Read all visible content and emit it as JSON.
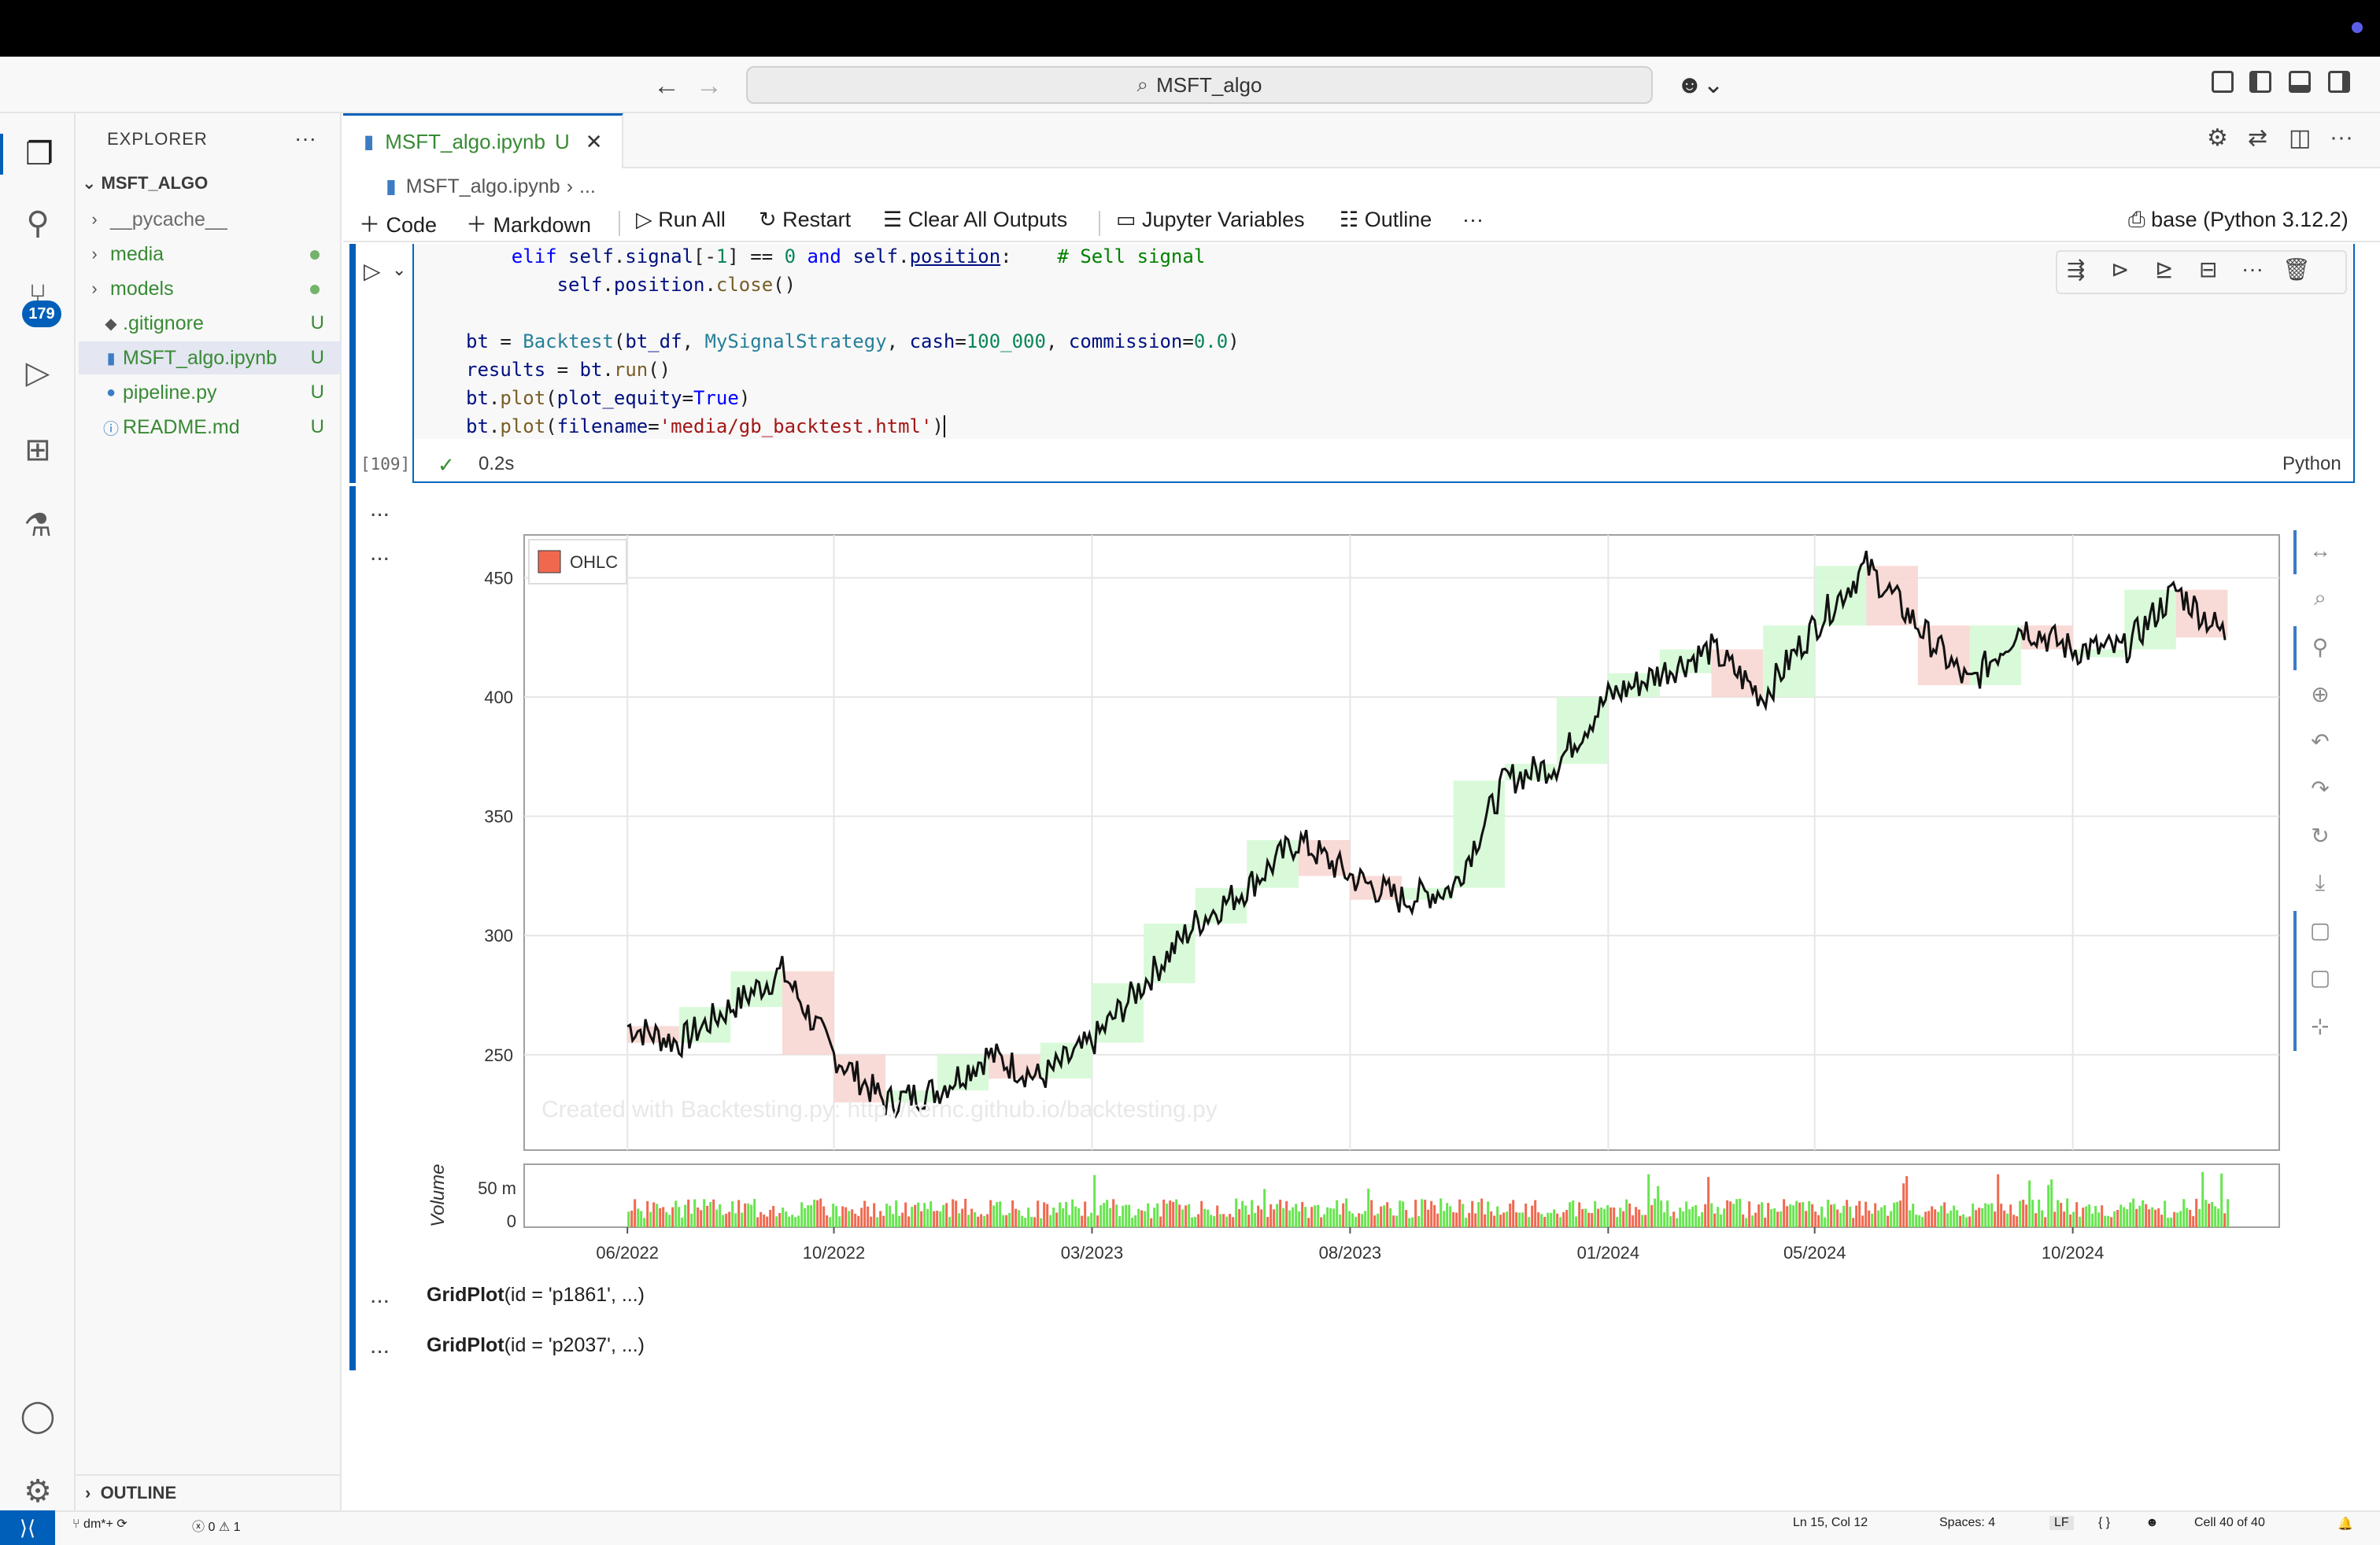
{
  "window": {
    "search_text": "MSFT_algo"
  },
  "activity": {
    "scm_badge": "179"
  },
  "explorer": {
    "title": "EXPLORER",
    "root": "MSFT_ALGO",
    "items": [
      {
        "label": "__pycache__",
        "type": "folder",
        "status": ""
      },
      {
        "label": "media",
        "type": "folder",
        "status": "dot"
      },
      {
        "label": "models",
        "type": "folder",
        "status": "dot"
      },
      {
        "label": ".gitignore",
        "type": "file",
        "status": "U"
      },
      {
        "label": "MSFT_algo.ipynb",
        "type": "file",
        "status": "U"
      },
      {
        "label": "pipeline.py",
        "type": "file",
        "status": "U"
      },
      {
        "label": "README.md",
        "type": "file",
        "status": "U"
      }
    ],
    "outline": "OUTLINE"
  },
  "tab": {
    "label": "MSFT_algo.ipynb",
    "status": "U"
  },
  "breadcrumb": {
    "file": "MSFT_algo.ipynb",
    "rest": "..."
  },
  "toolbar": {
    "code": "Code",
    "markdown": "Markdown",
    "run_all": "Run All",
    "restart": "Restart",
    "clear_outputs": "Clear All Outputs",
    "variables": "Jupyter Variables",
    "outline": "Outline",
    "more": "···",
    "kernel": "base (Python 3.12.2)"
  },
  "cell": {
    "exec_count": "[109]",
    "time": "0.2s",
    "language": "Python"
  },
  "chart_data": [
    {
      "type": "candlestick",
      "legend": [
        "OHLC"
      ],
      "legend_position": "top-left",
      "watermark": "Created with Backtesting.py: http://kernc.github.io/backtesting.py",
      "ylim": [
        210,
        468
      ],
      "yticks": [
        250,
        300,
        350,
        400,
        450
      ],
      "xlim": [
        "2022-04",
        "2025-02"
      ],
      "xticks": [
        "06/2022",
        "10/2022",
        "03/2023",
        "08/2023",
        "01/2024",
        "05/2024",
        "10/2024"
      ],
      "grid": true,
      "close_series": [
        [
          "2022-06",
          262
        ],
        [
          "2022-07",
          255
        ],
        [
          "2022-08",
          270
        ],
        [
          "2022-09",
          285
        ],
        [
          "2022-10",
          250
        ],
        [
          "2022-11",
          230
        ],
        [
          "2022-12",
          235
        ],
        [
          "2023-01",
          250
        ],
        [
          "2023-02",
          240
        ],
        [
          "2023-03",
          255
        ],
        [
          "2023-04",
          280
        ],
        [
          "2023-05",
          305
        ],
        [
          "2023-06",
          320
        ],
        [
          "2023-07",
          340
        ],
        [
          "2023-08",
          325
        ],
        [
          "2023-09",
          315
        ],
        [
          "2023-10",
          320
        ],
        [
          "2023-11",
          365
        ],
        [
          "2023-12",
          372
        ],
        [
          "2024-01",
          400
        ],
        [
          "2024-02",
          410
        ],
        [
          "2024-03",
          420
        ],
        [
          "2024-04",
          400
        ],
        [
          "2024-05",
          430
        ],
        [
          "2024-06",
          455
        ],
        [
          "2024-07",
          430
        ],
        [
          "2024-08",
          405
        ],
        [
          "2024-09",
          430
        ],
        [
          "2024-10",
          420
        ],
        [
          "2024-11",
          420
        ],
        [
          "2024-12",
          445
        ],
        [
          "2025-01",
          425
        ]
      ]
    },
    {
      "type": "bar",
      "ylabel": "Volume",
      "yticks": [
        "0",
        "50 m"
      ],
      "ylim": [
        0,
        70
      ]
    }
  ],
  "outputs": {
    "more1": "...",
    "more2": "...",
    "gridplot1_name": "GridPlot",
    "gridplot1_args": "(id = 'p1861', ...)",
    "gridplot2_name": "GridPlot",
    "gridplot2_args": "(id = 'p2037', ...)"
  },
  "status": {
    "branch": "dm*+",
    "errors": "0",
    "warnings": "1",
    "position": "Ln 15, Col 12",
    "spaces": "Spaces: 4",
    "eol": "LF",
    "braces": "{ }",
    "cell": "Cell 40 of 40"
  }
}
